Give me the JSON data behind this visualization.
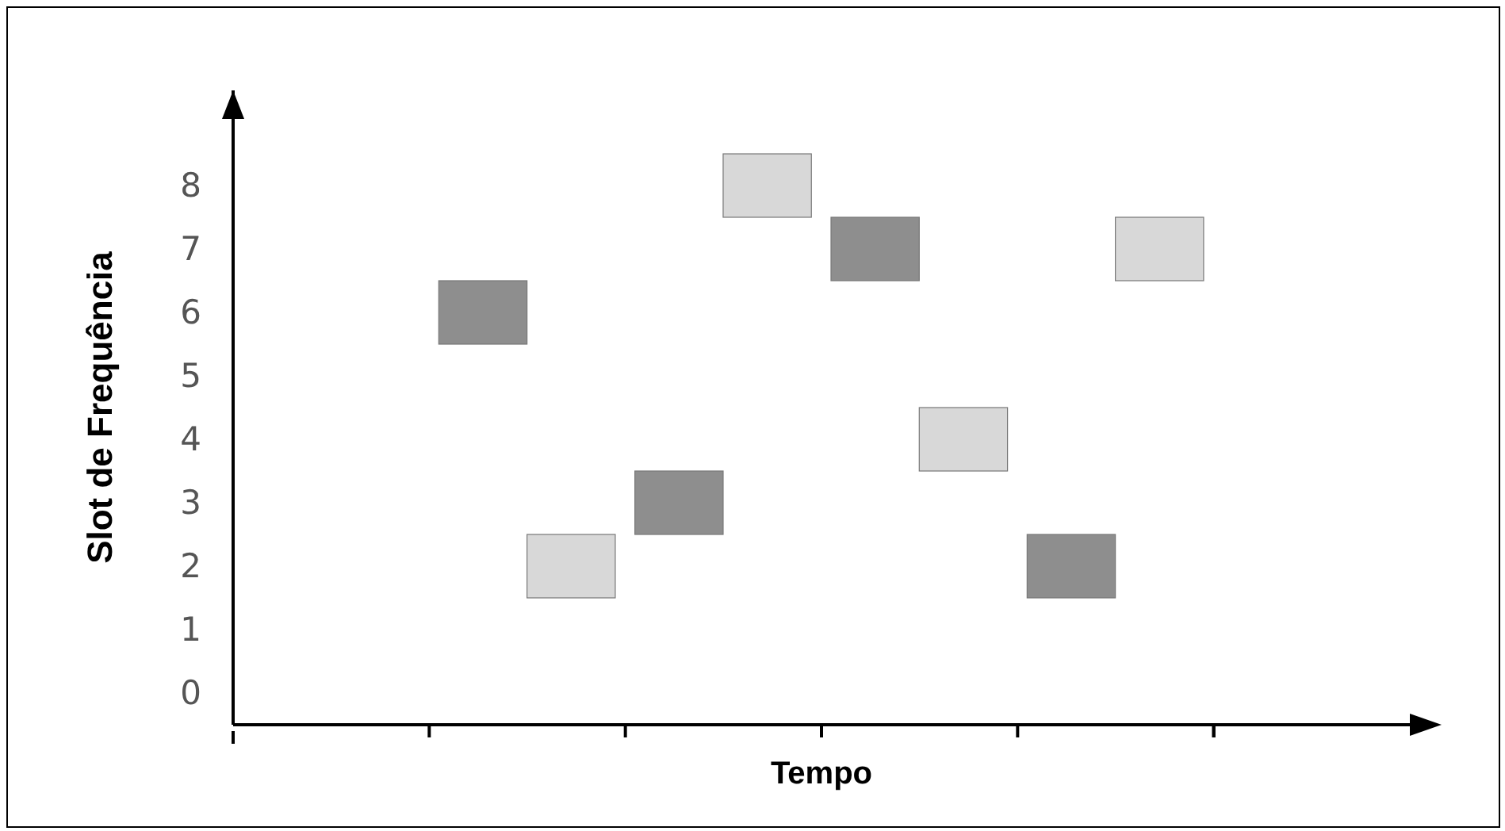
{
  "chart_data": {
    "type": "bar",
    "xlabel": "Tempo",
    "ylabel": "Slot de Frequência",
    "categories": [
      null,
      null,
      null,
      null,
      null,
      null
    ],
    "series": [
      {
        "color": "#8e8e8e",
        "values": [
          null,
          1,
          1,
          1,
          1,
          null
        ],
        "base": [
          null,
          5.5,
          2.5,
          6.5,
          1.5,
          null
        ]
      },
      {
        "color": "#d8d8d8",
        "values": [
          null,
          1,
          1,
          1,
          1,
          null
        ],
        "base": [
          null,
          1.5,
          7.5,
          3.5,
          6.5,
          null
        ]
      }
    ],
    "ylim": [
      -0.5,
      9.5
    ],
    "yticks": [
      0,
      1,
      2,
      3,
      4,
      5,
      6,
      7,
      8
    ],
    "tick_labels": "y",
    "legend": false
  }
}
